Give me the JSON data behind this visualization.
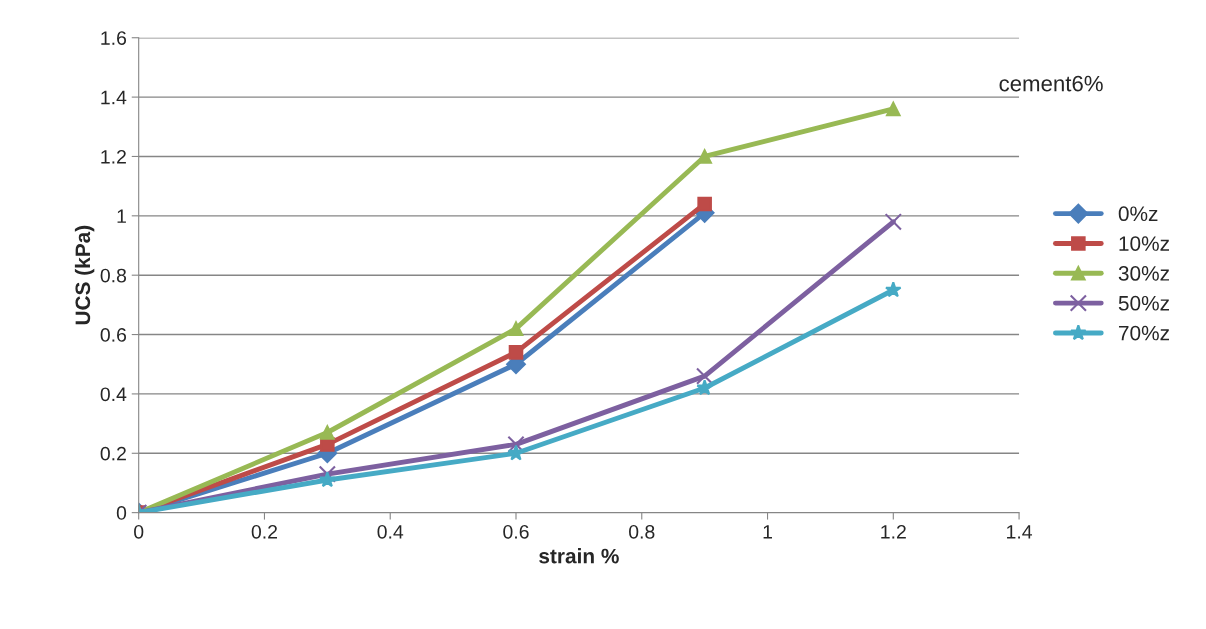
{
  "chart_data": {
    "type": "line",
    "xlabel": "strain %",
    "ylabel": "UCS (kPa)",
    "annotations": [
      "cement6%"
    ],
    "xlim": [
      0,
      1.4
    ],
    "xticks": [
      0,
      0.2,
      0.4,
      0.6,
      0.8,
      1,
      1.2,
      1.4
    ],
    "ylim": [
      0,
      1.6
    ],
    "yticks": [
      0,
      0.2,
      0.4,
      0.6,
      0.8,
      1,
      1.2,
      1.4,
      1.6
    ],
    "grid": "y",
    "legend": "right",
    "line_style": "solid",
    "series": [
      {
        "name": "0%z",
        "color": "#4a7ebb",
        "marker": "diamond",
        "x": [
          0,
          0.3,
          0.6,
          0.9
        ],
        "values": [
          0,
          0.2,
          0.5,
          1.01
        ]
      },
      {
        "name": "10%z",
        "color": "#be4b48",
        "marker": "square",
        "x": [
          0,
          0.3,
          0.6,
          0.9
        ],
        "values": [
          0,
          0.23,
          0.54,
          1.04
        ]
      },
      {
        "name": "30%z",
        "color": "#98b954",
        "marker": "triangle",
        "x": [
          0,
          0.3,
          0.6,
          0.9,
          1.2
        ],
        "values": [
          0,
          0.27,
          0.62,
          1.2,
          1.36
        ]
      },
      {
        "name": "50%z",
        "color": "#7d60a0",
        "marker": "cross",
        "x": [
          0,
          0.3,
          0.6,
          0.9,
          1.2
        ],
        "values": [
          0,
          0.13,
          0.23,
          0.46,
          0.98
        ]
      },
      {
        "name": "70%z",
        "color": "#46aac5",
        "marker": "star",
        "x": [
          0,
          0.3,
          0.6,
          0.9,
          1.2
        ],
        "values": [
          0,
          0.11,
          0.2,
          0.42,
          0.75
        ]
      }
    ]
  }
}
